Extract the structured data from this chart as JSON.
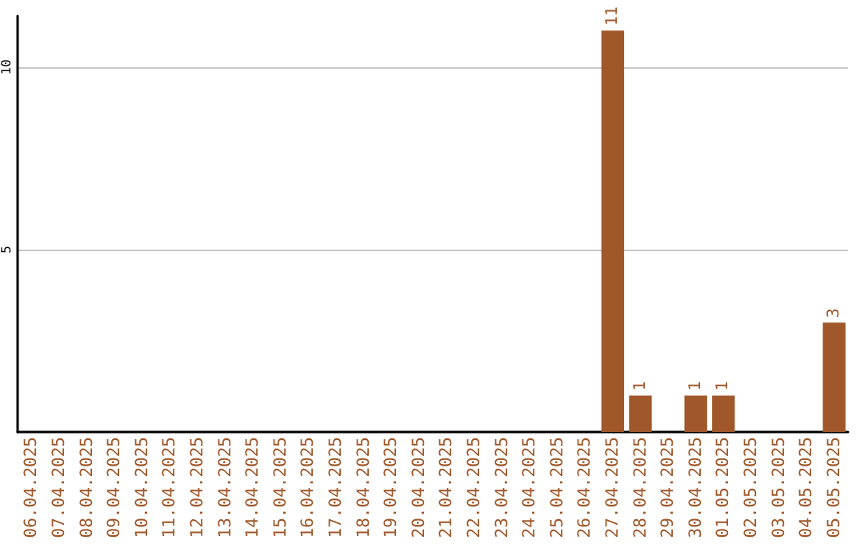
{
  "chart_data": {
    "type": "bar",
    "categories": [
      "06.04.2025",
      "07.04.2025",
      "08.04.2025",
      "09.04.2025",
      "10.04.2025",
      "11.04.2025",
      "12.04.2025",
      "13.04.2025",
      "14.04.2025",
      "15.04.2025",
      "16.04.2025",
      "17.04.2025",
      "18.04.2025",
      "19.04.2025",
      "20.04.2025",
      "21.04.2025",
      "22.04.2025",
      "23.04.2025",
      "24.04.2025",
      "25.04.2025",
      "26.04.2025",
      "27.04.2025",
      "28.04.2025",
      "29.04.2025",
      "30.04.2025",
      "01.05.2025",
      "02.05.2025",
      "03.05.2025",
      "04.05.2025",
      "05.05.2025"
    ],
    "values": [
      0,
      0,
      0,
      0,
      0,
      0,
      0,
      0,
      0,
      0,
      0,
      0,
      0,
      0,
      0,
      0,
      0,
      0,
      0,
      0,
      0,
      11,
      1,
      0,
      1,
      1,
      0,
      0,
      0,
      3
    ],
    "value_labels": [
      null,
      null,
      null,
      null,
      null,
      null,
      null,
      null,
      null,
      null,
      null,
      null,
      null,
      null,
      null,
      null,
      null,
      null,
      null,
      null,
      null,
      "11",
      "1",
      null,
      "1",
      "1",
      null,
      null,
      null,
      "3"
    ],
    "color": "#a0582a",
    "ylim": [
      0,
      11.4
    ],
    "yticks": [
      5,
      10
    ],
    "grid": "y"
  }
}
